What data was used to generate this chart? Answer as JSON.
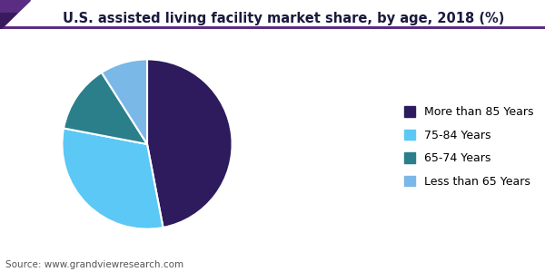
{
  "title": "U.S. assisted living facility market share, by age, 2018 (%)",
  "source": "Source: www.grandviewresearch.com",
  "labels": [
    "More than 85 Years",
    "75-84 Years",
    "65-74 Years",
    "Less than 65 Years"
  ],
  "values": [
    47.0,
    31.0,
    13.0,
    9.0
  ],
  "colors": [
    "#2d1b5e",
    "#5bc8f5",
    "#2a7f8a",
    "#7ab8e8"
  ],
  "startangle": 90,
  "title_fontsize": 10.5,
  "legend_fontsize": 9,
  "source_fontsize": 7.5,
  "background_color": "#ffffff",
  "title_color": "#1a1a3e",
  "wedge_linewidth": 1.5,
  "wedge_linecolor": "#ffffff",
  "header_line_color": "#5a2d82",
  "triangle_color1": "#5a2d82",
  "triangle_color2": "#3a1a5e"
}
